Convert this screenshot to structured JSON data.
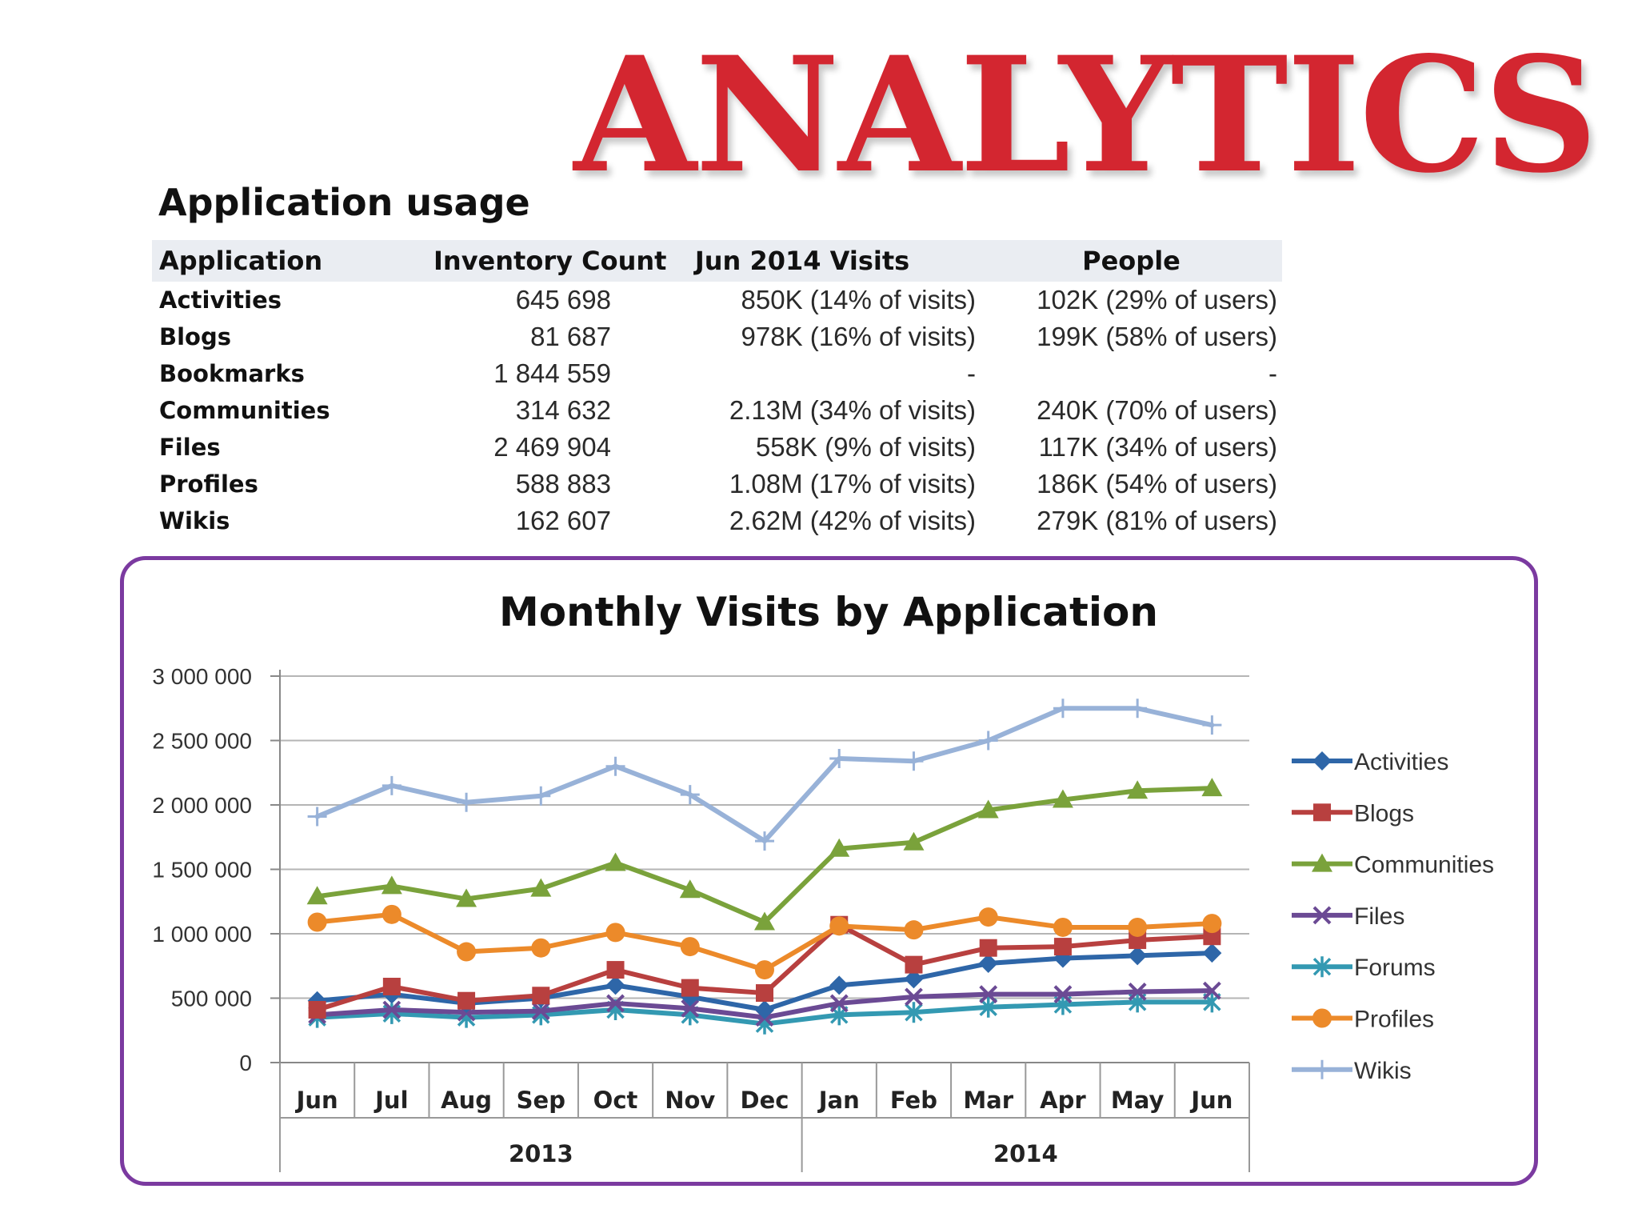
{
  "banner": {
    "text": "ANALYTICS",
    "color": "#d32630"
  },
  "usage": {
    "heading": "Application usage",
    "columns": [
      "Application",
      "Inventory Count",
      "Jun 2014 Visits",
      "People"
    ],
    "rows": [
      {
        "app": "Activities",
        "inventory": "645 698",
        "visits": "850K  (14% of visits)",
        "people": "102K  (29% of users)"
      },
      {
        "app": "Blogs",
        "inventory": "81 687",
        "visits": "978K  (16% of visits)",
        "people": "199K  (58% of users)"
      },
      {
        "app": "Bookmarks",
        "inventory": "1 844 559",
        "visits": "-",
        "people": "-"
      },
      {
        "app": "Communities",
        "inventory": "314 632",
        "visits": "2.13M  (34% of visits)",
        "people": "240K  (70% of users)"
      },
      {
        "app": "Files",
        "inventory": "2 469 904",
        "visits": "558K   (9% of visits)",
        "people": "117K  (34% of users)"
      },
      {
        "app": "Profiles",
        "inventory": "588 883",
        "visits": "1.08M  (17% of visits)",
        "people": "186K  (54% of users)"
      },
      {
        "app": "Wikis",
        "inventory": "162 607",
        "visits": "2.62M  (42% of visits)",
        "people": "279K  (81% of users)"
      }
    ]
  },
  "chart_data": {
    "type": "line",
    "title": "Monthly Visits by Application",
    "xlabel": "",
    "ylabel": "",
    "categories": [
      "Jun",
      "Jul",
      "Aug",
      "Sep",
      "Oct",
      "Nov",
      "Dec",
      "Jan",
      "Feb",
      "Mar",
      "Apr",
      "May",
      "Jun"
    ],
    "groups": [
      {
        "label": "2013",
        "count": 7
      },
      {
        "label": "2014",
        "count": 6
      }
    ],
    "ylim": [
      0,
      3000000
    ],
    "yticks": [
      0,
      500000,
      1000000,
      1500000,
      2000000,
      2500000,
      3000000
    ],
    "ytick_labels": [
      "0",
      "500 000",
      "1 000 000",
      "1 500 000",
      "2 000 000",
      "2 500 000",
      "3 000 000"
    ],
    "grid": "horizontal",
    "legend_position": "right",
    "series": [
      {
        "name": "Activities",
        "color": "#2e66a8",
        "marker": "diamond",
        "values": [
          480000,
          530000,
          460000,
          500000,
          600000,
          510000,
          410000,
          600000,
          650000,
          770000,
          810000,
          830000,
          850000
        ]
      },
      {
        "name": "Blogs",
        "color": "#b8403f",
        "marker": "square",
        "values": [
          410000,
          590000,
          480000,
          520000,
          720000,
          580000,
          540000,
          1070000,
          760000,
          890000,
          900000,
          950000,
          980000
        ]
      },
      {
        "name": "Communities",
        "color": "#7aa23b",
        "marker": "triangle",
        "values": [
          1290000,
          1370000,
          1270000,
          1350000,
          1550000,
          1340000,
          1090000,
          1660000,
          1710000,
          1960000,
          2040000,
          2110000,
          2130000
        ]
      },
      {
        "name": "Files",
        "color": "#6b4a94",
        "marker": "x",
        "values": [
          370000,
          410000,
          390000,
          400000,
          460000,
          420000,
          350000,
          460000,
          510000,
          530000,
          530000,
          550000,
          558000
        ]
      },
      {
        "name": "Forums",
        "color": "#3399b2",
        "marker": "asterisk",
        "values": [
          350000,
          380000,
          350000,
          370000,
          410000,
          370000,
          300000,
          370000,
          390000,
          430000,
          450000,
          470000,
          470000
        ]
      },
      {
        "name": "Profiles",
        "color": "#ec8a2a",
        "marker": "circle",
        "values": [
          1090000,
          1150000,
          860000,
          890000,
          1010000,
          900000,
          720000,
          1060000,
          1030000,
          1130000,
          1050000,
          1050000,
          1080000
        ]
      },
      {
        "name": "Wikis",
        "color": "#98b2d8",
        "marker": "plus",
        "values": [
          1910000,
          2150000,
          2020000,
          2070000,
          2300000,
          2080000,
          1720000,
          2360000,
          2340000,
          2500000,
          2750000,
          2750000,
          2620000
        ]
      }
    ]
  }
}
